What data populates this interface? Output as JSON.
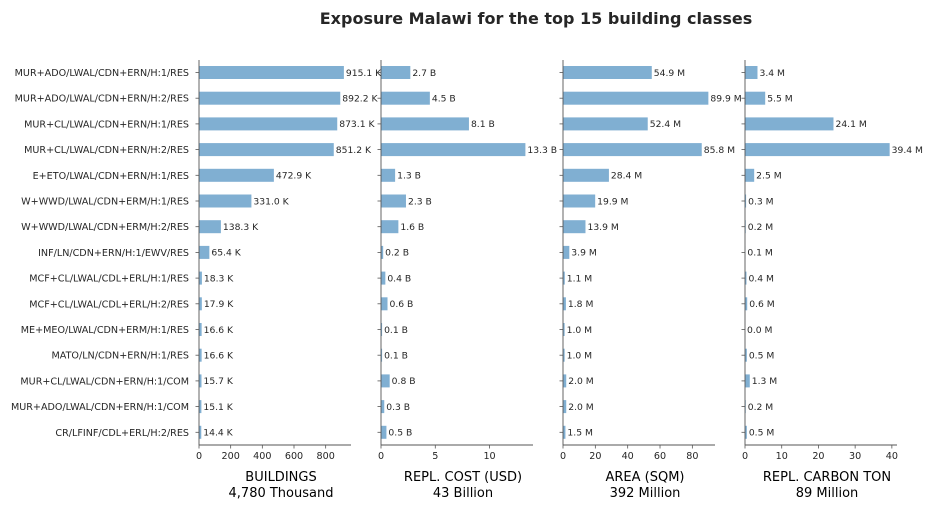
{
  "chart_data": {
    "type": "bar",
    "orientation": "horizontal",
    "title": "Exposure Malawi for the top 15 building classes",
    "categories": [
      "MUR+ADO/LWAL/CDN+ERN/H:1/RES",
      "MUR+ADO/LWAL/CDN+ERN/H:2/RES",
      "MUR+CL/LWAL/CDN+ERN/H:1/RES",
      "MUR+CL/LWAL/CDN+ERN/H:2/RES",
      "E+ETO/LWAL/CDN+ERN/H:1/RES",
      "W+WWD/LWAL/CDN+ERM/H:1/RES",
      "W+WWD/LWAL/CDN+ERM/H:2/RES",
      "INF/LN/CDN+ERN/H:1/EWV/RES",
      "MCF+CL/LWAL/CDL+ERL/H:1/RES",
      "MCF+CL/LWAL/CDL+ERL/H:2/RES",
      "ME+MEO/LWAL/CDN+ERM/H:1/RES",
      "MATO/LN/CDN+ERN/H:1/RES",
      "MUR+CL/LWAL/CDN+ERN/H:1/COM",
      "MUR+ADO/LWAL/CDN+ERN/H:1/COM",
      "CR/LFINF/CDL+ERL/H:2/RES"
    ],
    "bar_color": "#80afd2",
    "panels": [
      {
        "xlabel": "BUILDINGS",
        "total": "4,780 Thousand",
        "xlim": [
          0,
          960
        ],
        "ticks": [
          0,
          200,
          400,
          600,
          800
        ],
        "tick_labels": [
          "0",
          "200",
          "400",
          "600",
          "800"
        ],
        "values": [
          915.1,
          892.2,
          873.1,
          851.2,
          472.9,
          331.0,
          138.3,
          65.4,
          18.3,
          17.9,
          16.6,
          16.6,
          15.7,
          15.1,
          14.4
        ],
        "labels": [
          "915.1 K",
          "892.2 K",
          "873.1 K",
          "851.2 K",
          "472.9 K",
          "331.0 K",
          "138.3 K",
          "65.4 K",
          "18.3 K",
          "17.9 K",
          "16.6 K",
          "16.6 K",
          "15.7 K",
          "15.1 K",
          "14.4 K"
        ]
      },
      {
        "xlabel": "REPL. COST (USD)",
        "total": "43 Billion",
        "xlim": [
          0,
          14
        ],
        "ticks": [
          0,
          5,
          10
        ],
        "tick_labels": [
          "0",
          "5",
          "10"
        ],
        "values": [
          2.7,
          4.5,
          8.1,
          13.3,
          1.3,
          2.3,
          1.6,
          0.2,
          0.4,
          0.6,
          0.1,
          0.1,
          0.8,
          0.3,
          0.5
        ],
        "labels": [
          "2.7 B",
          "4.5 B",
          "8.1 B",
          "13.3 B",
          "1.3 B",
          "2.3 B",
          "1.6 B",
          "0.2 B",
          "0.4 B",
          "0.6 B",
          "0.1 B",
          "0.1 B",
          "0.8 B",
          "0.3 B",
          "0.5 B"
        ]
      },
      {
        "xlabel": "AREA (SQM)",
        "total": "392 Million",
        "xlim": [
          0,
          94
        ],
        "ticks": [
          0,
          20,
          40,
          60,
          80
        ],
        "tick_labels": [
          "0",
          "20",
          "40",
          "60",
          "80"
        ],
        "values": [
          54.9,
          89.9,
          52.4,
          85.8,
          28.4,
          19.9,
          13.9,
          3.9,
          1.1,
          1.8,
          1.0,
          1.0,
          2.0,
          2.0,
          1.5
        ],
        "labels": [
          "54.9 M",
          "89.9 M",
          "52.4 M",
          "85.8 M",
          "28.4 M",
          "19.9 M",
          "13.9 M",
          "3.9 M",
          "1.1 M",
          "1.8 M",
          "1.0 M",
          "1.0 M",
          "2.0 M",
          "2.0 M",
          "1.5 M"
        ]
      },
      {
        "xlabel": "REPL. CARBON TON",
        "total": "89 Million",
        "xlim": [
          0,
          41.4
        ],
        "ticks": [
          0,
          10,
          20,
          30,
          40
        ],
        "tick_labels": [
          "0",
          "10",
          "20",
          "30",
          "40"
        ],
        "values": [
          3.4,
          5.5,
          24.1,
          39.4,
          2.5,
          0.3,
          0.2,
          0.1,
          0.4,
          0.6,
          0.0,
          0.5,
          1.3,
          0.2,
          0.5
        ],
        "labels": [
          "3.4 M",
          "5.5 M",
          "24.1 M",
          "39.4 M",
          "2.5 M",
          "0.3 M",
          "0.2 M",
          "0.1 M",
          "0.4 M",
          "0.6 M",
          "0.0 M",
          "0.5 M",
          "1.3 M",
          "0.2 M",
          "0.5 M"
        ]
      }
    ]
  }
}
